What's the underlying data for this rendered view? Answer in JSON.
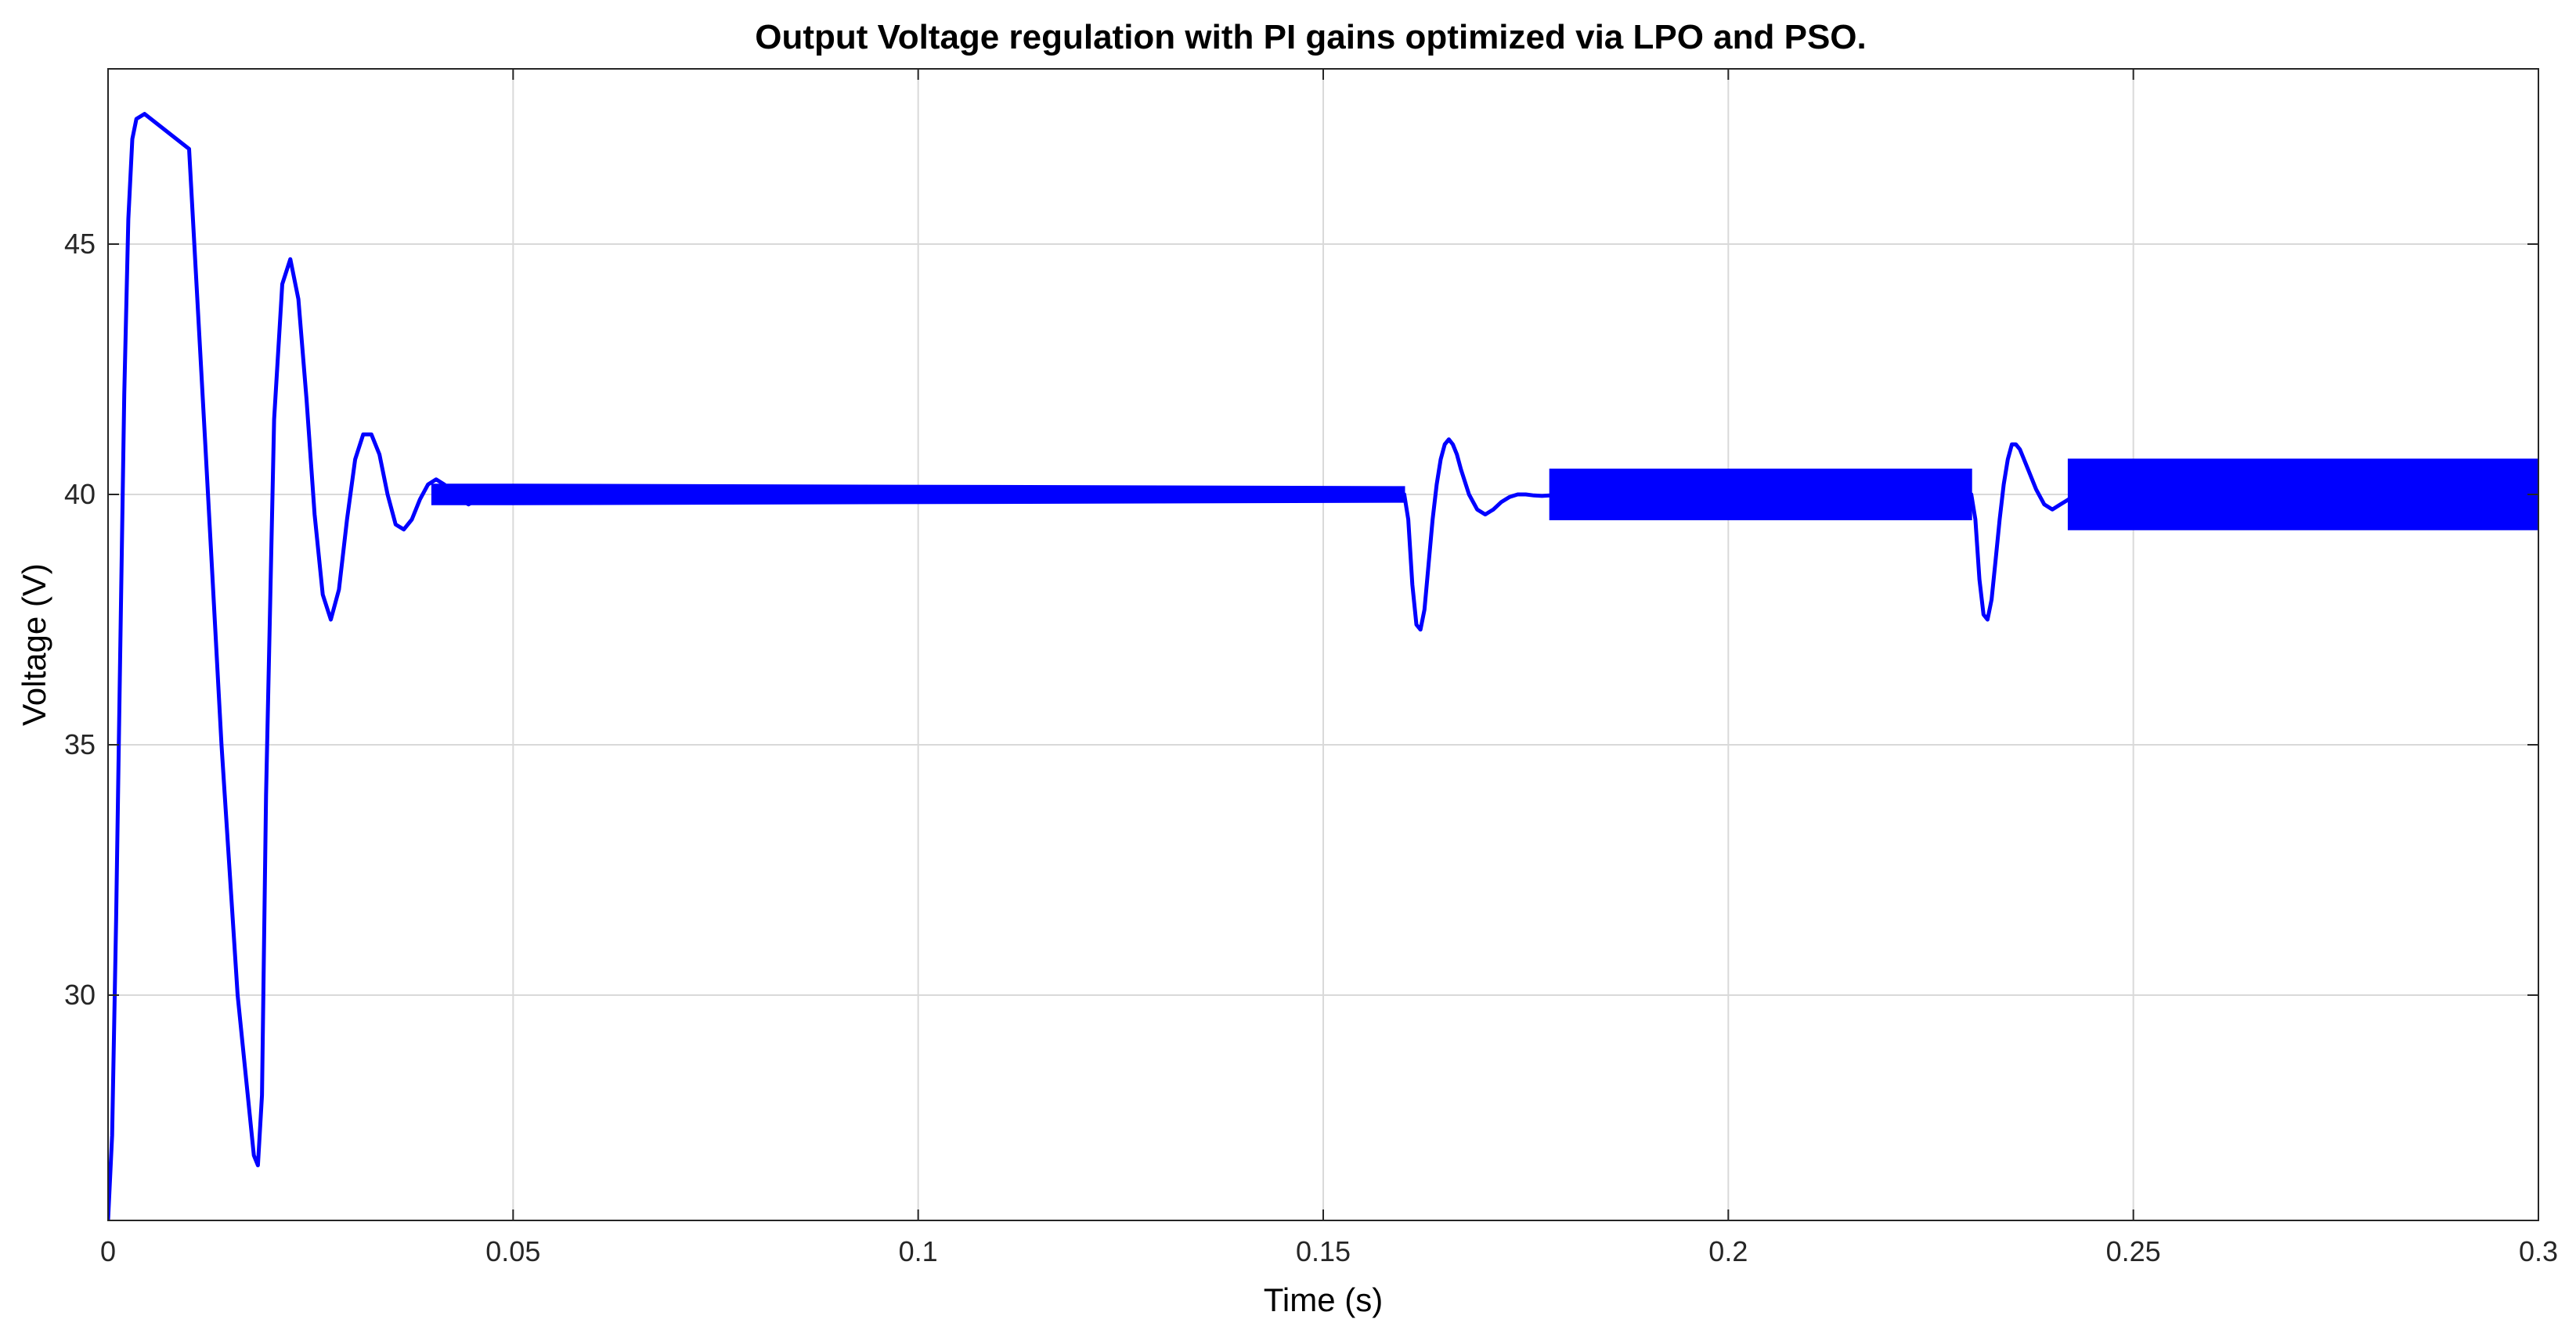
{
  "chart_data": {
    "type": "line",
    "title": "Output Voltage regulation with PI gains optimized via LPO and PSO.",
    "xlabel": "Time (s)",
    "ylabel": "Voltage (V)",
    "xlim": [
      0,
      0.3
    ],
    "ylim": [
      25.5,
      48.5
    ],
    "xticks": [
      0,
      0.05,
      0.1,
      0.15,
      0.2,
      0.25,
      0.3
    ],
    "xtick_labels": [
      "0",
      "0.05",
      "0.1",
      "0.15",
      "0.2",
      "0.25",
      "0.3"
    ],
    "yticks": [
      30,
      35,
      40,
      45
    ],
    "ytick_labels": [
      "30",
      "35",
      "40",
      "45"
    ],
    "grid": true,
    "legend": "none",
    "colors": {
      "series": "#0000ff",
      "grid": "#d9d9d9",
      "axes": "#262626"
    },
    "series": [
      {
        "x": [
          0,
          0.0005,
          0.001,
          0.0015,
          0.002,
          0.0025,
          0.003,
          0.0035,
          0.0045,
          0.01,
          0.012,
          0.014,
          0.016,
          0.018,
          0.0185,
          0.019,
          0.0195,
          0.0205,
          0.0215,
          0.0225,
          0.0235,
          0.0245,
          0.0255,
          0.0265,
          0.0275,
          0.0285,
          0.0295,
          0.0305,
          0.0315,
          0.0325,
          0.0335,
          0.0345,
          0.0355,
          0.0365,
          0.0375,
          0.0385,
          0.0395,
          0.0405,
          0.0415,
          0.0425,
          0.0435,
          0.0445,
          0.0455,
          0.0465,
          0.0475,
          0.0485,
          0.0495,
          0.0505,
          0.0515,
          0.0525,
          0.0545,
          0.0565,
          0.06,
          0.1,
          0.16,
          0.1605,
          0.161,
          0.1615,
          0.162,
          0.1625,
          0.163,
          0.1635,
          0.164,
          0.1645,
          0.165,
          0.1655,
          0.166,
          0.1665,
          0.167,
          0.168,
          0.169,
          0.17,
          0.171,
          0.172,
          0.173,
          0.174,
          0.175,
          0.176,
          0.177,
          0.178,
          0.179,
          0.18,
          0.23,
          0.2305,
          0.231,
          0.2315,
          0.232,
          0.2325,
          0.233,
          0.2335,
          0.234,
          0.2345,
          0.235,
          0.2355,
          0.236,
          0.2365,
          0.237,
          0.238,
          0.239,
          0.24,
          0.241,
          0.242,
          0.243,
          0.3
        ],
        "y": [
          25.5,
          27.2,
          31.5,
          36.8,
          42.0,
          45.5,
          47.1,
          47.5,
          47.6,
          46.9,
          41.0,
          35.0,
          30.0,
          26.8,
          26.6,
          28.0,
          34.0,
          41.5,
          44.2,
          44.7,
          43.9,
          41.9,
          39.6,
          38.0,
          37.5,
          38.1,
          39.5,
          40.7,
          41.2,
          41.2,
          40.8,
          40.0,
          39.4,
          39.3,
          39.5,
          39.9,
          40.2,
          40.3,
          40.2,
          40.0,
          39.9,
          39.8,
          39.9,
          40.0,
          40.1,
          40.1,
          40.05,
          40.0,
          39.98,
          40.0,
          40.02,
          40.0,
          40.0,
          40.0,
          40.0,
          39.5,
          38.2,
          37.4,
          37.3,
          37.7,
          38.6,
          39.5,
          40.2,
          40.7,
          41.0,
          41.1,
          41.0,
          40.8,
          40.5,
          40.0,
          39.7,
          39.6,
          39.7,
          39.85,
          39.95,
          40.0,
          40.0,
          39.98,
          39.97,
          39.98,
          40.0,
          40.0,
          40.0,
          39.5,
          38.3,
          37.6,
          37.5,
          37.9,
          38.7,
          39.5,
          40.2,
          40.7,
          41.0,
          41.0,
          40.9,
          40.7,
          40.5,
          40.1,
          39.8,
          39.7,
          39.8,
          39.9,
          40.0,
          40.0
        ],
        "envelope": [
          {
            "x": [
              0.04,
              0.05,
              0.16
            ],
            "low": [
              39.8,
              39.8,
              39.85
            ],
            "high": [
              40.2,
              40.2,
              40.15
            ]
          },
          {
            "x": [
              0.178,
              0.23
            ],
            "low": [
              39.5,
              39.5
            ],
            "high": [
              40.5,
              40.5
            ]
          },
          {
            "x": [
              0.242,
              0.3
            ],
            "low": [
              39.3,
              39.3
            ],
            "high": [
              40.7,
              40.7
            ]
          }
        ]
      }
    ]
  }
}
